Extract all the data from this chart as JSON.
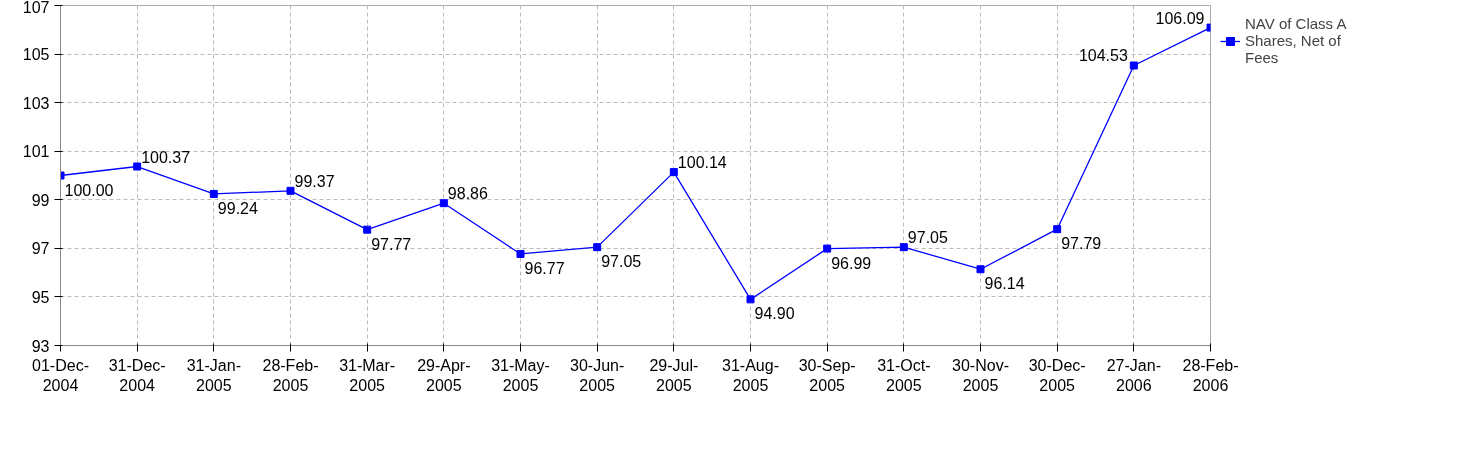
{
  "chart_data": {
    "type": "line",
    "categories": [
      "01-Dec-2004",
      "31-Dec-2004",
      "31-Jan-2005",
      "28-Feb-2005",
      "31-Mar-2005",
      "29-Apr-2005",
      "31-May-2005",
      "30-Jun-2005",
      "29-Jul-2005",
      "31-Aug-2005",
      "30-Sep-2005",
      "31-Oct-2005",
      "30-Nov-2005",
      "30-Dec-2005",
      "27-Jan-2006",
      "28-Feb-2006"
    ],
    "series": [
      {
        "name": "NAV of Class A Shares, Net of Fees",
        "color": "#0000ff",
        "values": [
          100.0,
          100.37,
          99.24,
          99.37,
          97.77,
          98.86,
          96.77,
          97.05,
          100.14,
          94.9,
          96.99,
          97.05,
          96.14,
          97.79,
          104.53,
          106.09
        ],
        "value_labels": [
          "100.00",
          "100.37",
          "99.24",
          "99.37",
          "97.77",
          "98.86",
          "96.77",
          "97.05",
          "100.14",
          "94.90",
          "96.99",
          "97.05",
          "96.14",
          "97.79",
          "104.53",
          "106.09"
        ]
      }
    ],
    "ylim": [
      93,
      107
    ],
    "yticks": [
      93,
      95,
      97,
      99,
      101,
      103,
      105,
      107
    ],
    "grid": true,
    "legend": "right",
    "marker": "square",
    "line_style": "solid"
  }
}
